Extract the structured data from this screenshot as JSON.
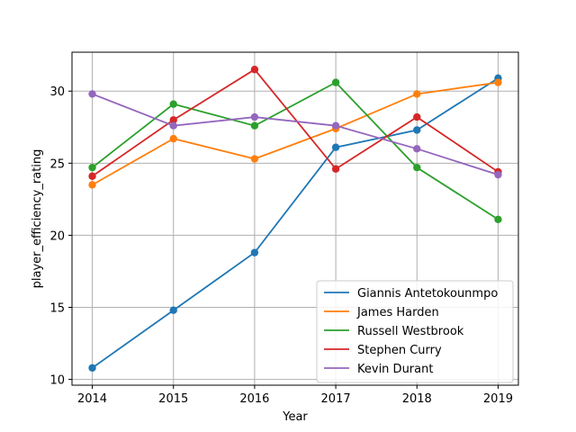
{
  "chart_data": {
    "type": "line",
    "title": "",
    "xlabel": "Year",
    "ylabel": "player_efficiency_rating",
    "x": [
      2014,
      2015,
      2016,
      2017,
      2018,
      2019
    ],
    "x_ticks": [
      "2014",
      "2015",
      "2016",
      "2017",
      "2018",
      "2019"
    ],
    "y_ticks": [
      "10",
      "15",
      "20",
      "25",
      "30"
    ],
    "xlim": [
      2013.75,
      2019.25
    ],
    "ylim": [
      9.6,
      32.7
    ],
    "grid": true,
    "legend_position": "lower-right",
    "series": [
      {
        "name": "Giannis Antetokounmpo",
        "color": "#1f77b4",
        "values": [
          10.8,
          14.8,
          18.8,
          26.1,
          27.3,
          30.9
        ]
      },
      {
        "name": "James Harden",
        "color": "#ff7f0e",
        "values": [
          23.5,
          26.7,
          25.3,
          27.4,
          29.8,
          30.6
        ]
      },
      {
        "name": "Russell Westbrook",
        "color": "#2ca02c",
        "values": [
          24.7,
          29.1,
          27.6,
          30.6,
          24.7,
          21.1
        ]
      },
      {
        "name": "Stephen Curry",
        "color": "#d62728",
        "values": [
          24.1,
          28.0,
          31.5,
          24.6,
          28.2,
          24.4
        ]
      },
      {
        "name": "Kevin Durant",
        "color": "#9467bd",
        "values": [
          29.8,
          27.6,
          28.2,
          27.6,
          26.0,
          24.2
        ]
      }
    ]
  }
}
